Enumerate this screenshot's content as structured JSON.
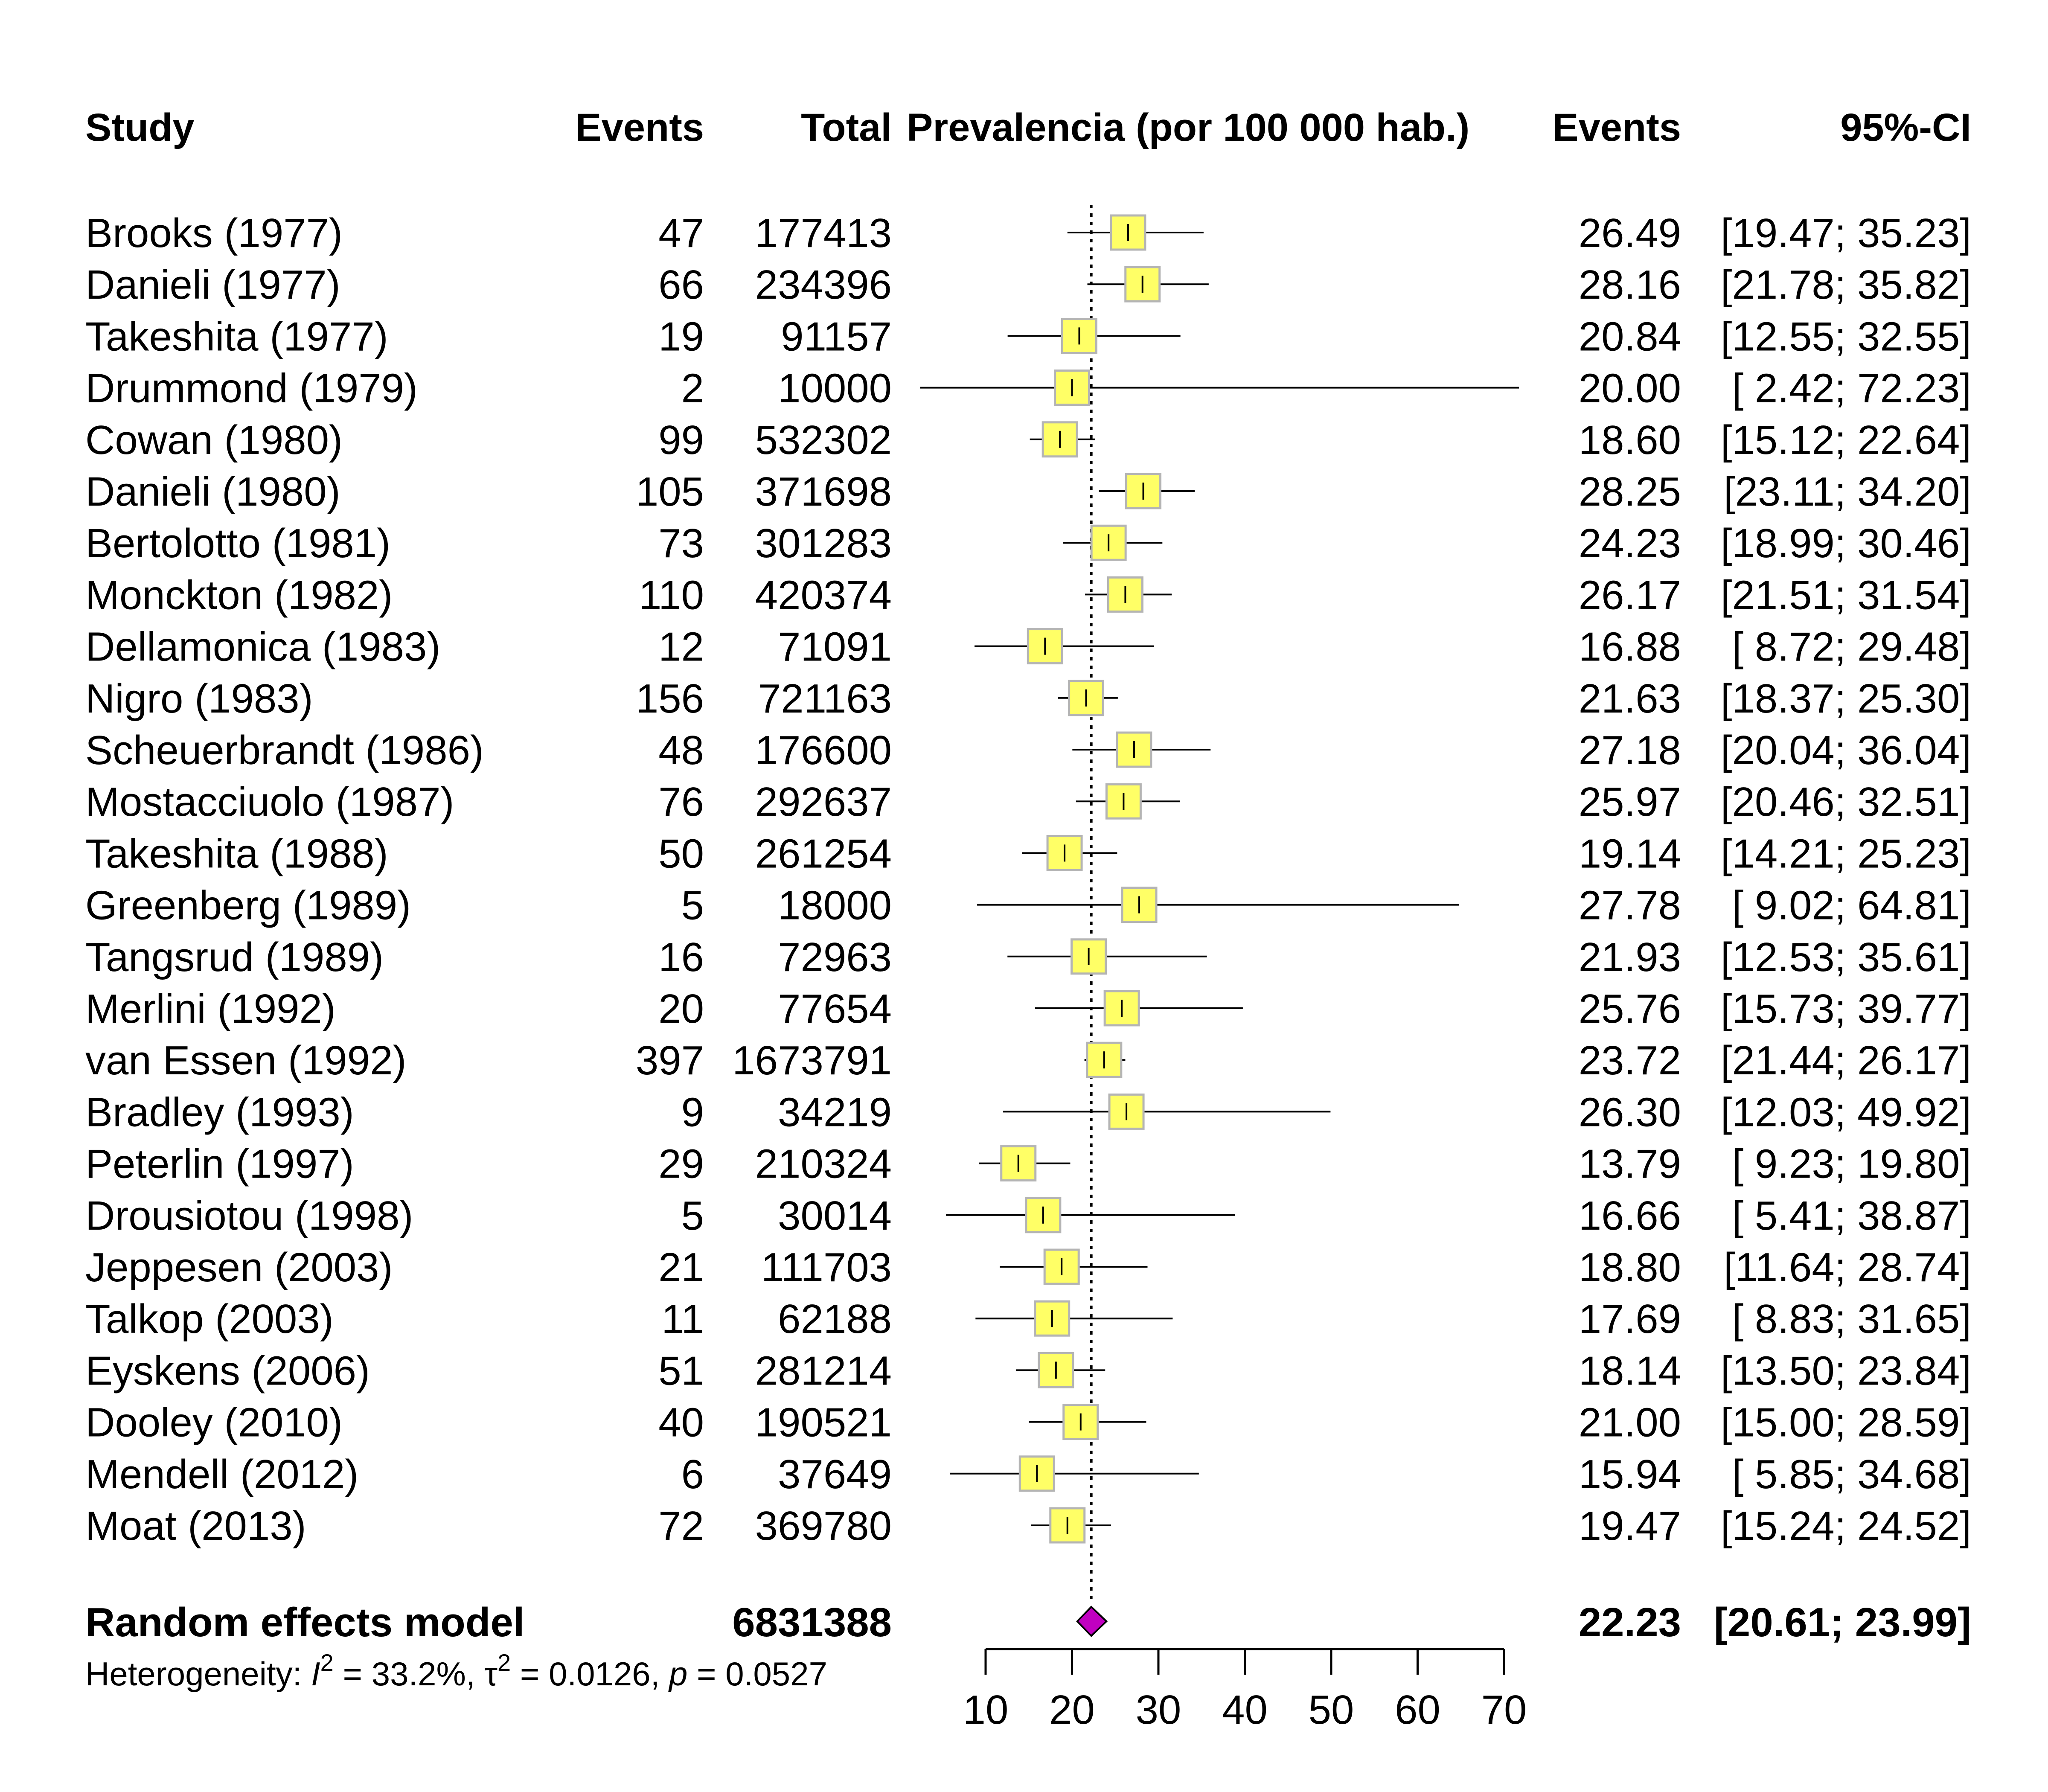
{
  "headers": {
    "study": "Study",
    "events": "Events",
    "total": "Total",
    "effect": "Prevalencia (por 100 000 hab.)",
    "events_right": "Events",
    "ci": "95%-CI"
  },
  "colors": {
    "box_fill": "#ffff66",
    "box_stroke": "#b4b4b4",
    "diamond_fill": "#c000c0",
    "line": "#000000"
  },
  "chart_data": {
    "type": "forest",
    "xlabel": "",
    "xlim": [
      10,
      70
    ],
    "xticks": [
      10,
      20,
      30,
      40,
      50,
      60,
      70
    ],
    "reference_line": 22.23,
    "studies": [
      {
        "study": "Brooks (1977)",
        "events": "47",
        "total": "177413",
        "estimate": 26.49,
        "lower": 19.47,
        "upper": 35.23,
        "est_label": "26.49",
        "ci_label": "[19.47; 35.23]"
      },
      {
        "study": "Danieli (1977)",
        "events": "66",
        "total": "234396",
        "estimate": 28.16,
        "lower": 21.78,
        "upper": 35.82,
        "est_label": "28.16",
        "ci_label": "[21.78; 35.82]"
      },
      {
        "study": "Takeshita (1977)",
        "events": "19",
        "total": "91157",
        "estimate": 20.84,
        "lower": 12.55,
        "upper": 32.55,
        "est_label": "20.84",
        "ci_label": "[12.55; 32.55]"
      },
      {
        "study": "Drummond (1979)",
        "events": "2",
        "total": "10000",
        "estimate": 20.0,
        "lower": 2.42,
        "upper": 72.23,
        "est_label": "20.00",
        "ci_label": "[ 2.42; 72.23]"
      },
      {
        "study": "Cowan (1980)",
        "events": "99",
        "total": "532302",
        "estimate": 18.6,
        "lower": 15.12,
        "upper": 22.64,
        "est_label": "18.60",
        "ci_label": "[15.12; 22.64]"
      },
      {
        "study": "Danieli (1980)",
        "events": "105",
        "total": "371698",
        "estimate": 28.25,
        "lower": 23.11,
        "upper": 34.2,
        "est_label": "28.25",
        "ci_label": "[23.11; 34.20]"
      },
      {
        "study": "Bertolotto (1981)",
        "events": "73",
        "total": "301283",
        "estimate": 24.23,
        "lower": 18.99,
        "upper": 30.46,
        "est_label": "24.23",
        "ci_label": "[18.99; 30.46]"
      },
      {
        "study": "Monckton (1982)",
        "events": "110",
        "total": "420374",
        "estimate": 26.17,
        "lower": 21.51,
        "upper": 31.54,
        "est_label": "26.17",
        "ci_label": "[21.51; 31.54]"
      },
      {
        "study": "Dellamonica (1983)",
        "events": "12",
        "total": "71091",
        "estimate": 16.88,
        "lower": 8.72,
        "upper": 29.48,
        "est_label": "16.88",
        "ci_label": "[ 8.72; 29.48]"
      },
      {
        "study": "Nigro (1983)",
        "events": "156",
        "total": "721163",
        "estimate": 21.63,
        "lower": 18.37,
        "upper": 25.3,
        "est_label": "21.63",
        "ci_label": "[18.37; 25.30]"
      },
      {
        "study": "Scheuerbrandt (1986)",
        "events": "48",
        "total": "176600",
        "estimate": 27.18,
        "lower": 20.04,
        "upper": 36.04,
        "est_label": "27.18",
        "ci_label": "[20.04; 36.04]"
      },
      {
        "study": "Mostacciuolo (1987)",
        "events": "76",
        "total": "292637",
        "estimate": 25.97,
        "lower": 20.46,
        "upper": 32.51,
        "est_label": "25.97",
        "ci_label": "[20.46; 32.51]"
      },
      {
        "study": "Takeshita (1988)",
        "events": "50",
        "total": "261254",
        "estimate": 19.14,
        "lower": 14.21,
        "upper": 25.23,
        "est_label": "19.14",
        "ci_label": "[14.21; 25.23]"
      },
      {
        "study": "Greenberg (1989)",
        "events": "5",
        "total": "18000",
        "estimate": 27.78,
        "lower": 9.02,
        "upper": 64.81,
        "est_label": "27.78",
        "ci_label": "[ 9.02; 64.81]"
      },
      {
        "study": "Tangsrud (1989)",
        "events": "16",
        "total": "72963",
        "estimate": 21.93,
        "lower": 12.53,
        "upper": 35.61,
        "est_label": "21.93",
        "ci_label": "[12.53; 35.61]"
      },
      {
        "study": "Merlini (1992)",
        "events": "20",
        "total": "77654",
        "estimate": 25.76,
        "lower": 15.73,
        "upper": 39.77,
        "est_label": "25.76",
        "ci_label": "[15.73; 39.77]"
      },
      {
        "study": "van Essen (1992)",
        "events": "397",
        "total": "1673791",
        "estimate": 23.72,
        "lower": 21.44,
        "upper": 26.17,
        "est_label": "23.72",
        "ci_label": "[21.44; 26.17]"
      },
      {
        "study": "Bradley (1993)",
        "events": "9",
        "total": "34219",
        "estimate": 26.3,
        "lower": 12.03,
        "upper": 49.92,
        "est_label": "26.30",
        "ci_label": "[12.03; 49.92]"
      },
      {
        "study": "Peterlin (1997)",
        "events": "29",
        "total": "210324",
        "estimate": 13.79,
        "lower": 9.23,
        "upper": 19.8,
        "est_label": "13.79",
        "ci_label": "[ 9.23; 19.80]"
      },
      {
        "study": "Drousiotou (1998)",
        "events": "5",
        "total": "30014",
        "estimate": 16.66,
        "lower": 5.41,
        "upper": 38.87,
        "est_label": "16.66",
        "ci_label": "[ 5.41; 38.87]"
      },
      {
        "study": "Jeppesen (2003)",
        "events": "21",
        "total": "111703",
        "estimate": 18.8,
        "lower": 11.64,
        "upper": 28.74,
        "est_label": "18.80",
        "ci_label": "[11.64; 28.74]"
      },
      {
        "study": "Talkop (2003)",
        "events": "11",
        "total": "62188",
        "estimate": 17.69,
        "lower": 8.83,
        "upper": 31.65,
        "est_label": "17.69",
        "ci_label": "[ 8.83; 31.65]"
      },
      {
        "study": "Eyskens (2006)",
        "events": "51",
        "total": "281214",
        "estimate": 18.14,
        "lower": 13.5,
        "upper": 23.84,
        "est_label": "18.14",
        "ci_label": "[13.50; 23.84]"
      },
      {
        "study": "Dooley (2010)",
        "events": "40",
        "total": "190521",
        "estimate": 21.0,
        "lower": 15.0,
        "upper": 28.59,
        "est_label": "21.00",
        "ci_label": "[15.00; 28.59]"
      },
      {
        "study": "Mendell (2012)",
        "events": "6",
        "total": "37649",
        "estimate": 15.94,
        "lower": 5.85,
        "upper": 34.68,
        "est_label": "15.94",
        "ci_label": "[ 5.85; 34.68]"
      },
      {
        "study": "Moat (2013)",
        "events": "72",
        "total": "369780",
        "estimate": 19.47,
        "lower": 15.24,
        "upper": 24.52,
        "est_label": "19.47",
        "ci_label": "[15.24; 24.52]"
      }
    ],
    "pooled": {
      "label": "Random effects model",
      "total": "6831388",
      "estimate": 22.23,
      "lower": 20.61,
      "upper": 23.99,
      "est_label": "22.23",
      "ci_label": "[20.61; 23.99]"
    },
    "heterogeneity": {
      "prefix": "Heterogeneity: ",
      "i2_symbol": "I",
      "i2_value": " = 33.2%, ",
      "tau_symbol": "τ",
      "tau_value": " = 0.0126, ",
      "p_symbol": "p",
      "p_value": " = 0.0527",
      "superscript": "2"
    }
  }
}
